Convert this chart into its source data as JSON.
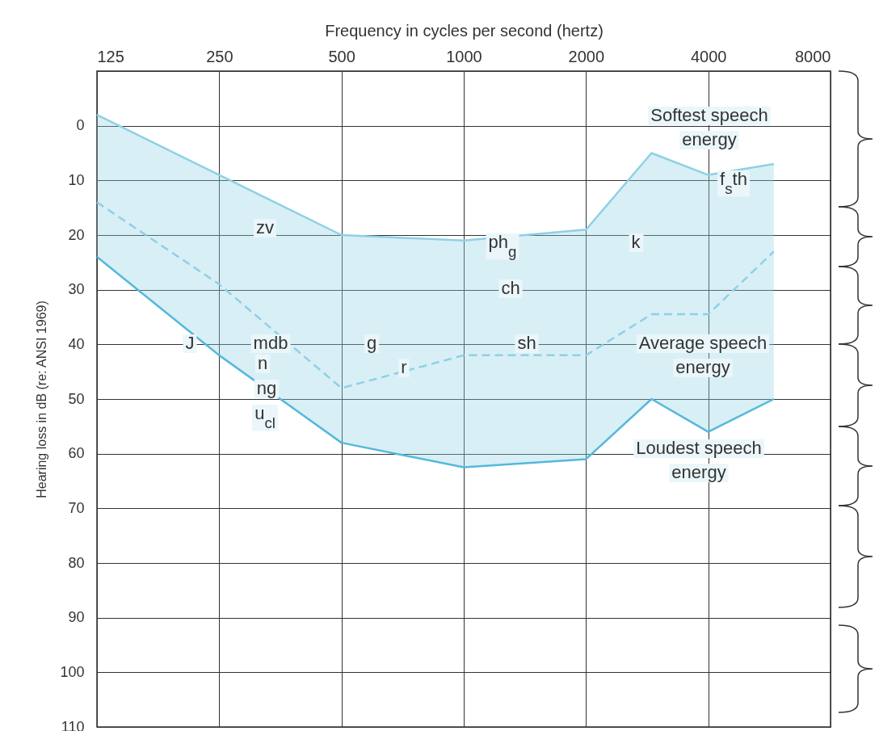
{
  "chart_data": {
    "type": "line",
    "xlabel": "Frequency in cycles per second (hertz)",
    "ylabel": "Hearing loss in dB (re: ANSI 1969)",
    "log": "x",
    "grid": true,
    "marker": "none",
    "xlim": [
      125,
      8000
    ],
    "xticks": [
      125,
      250,
      500,
      1000,
      2000,
      4000,
      8000
    ],
    "ylim": [
      110,
      -10
    ],
    "yticks": [
      0,
      10,
      20,
      30,
      40,
      50,
      60,
      70,
      80,
      90,
      100,
      110
    ],
    "series": [
      {
        "color": "#8fd0e6",
        "line_style": "solid",
        "x": [
          125,
          250,
          500,
          1000,
          2000,
          2900,
          4000,
          5800
        ],
        "values": [
          -2,
          9,
          20,
          21,
          19,
          5,
          9,
          7
        ]
      },
      {
        "color": "#8fd0e6",
        "line_style": "dashed",
        "x": [
          125,
          250,
          500,
          1000,
          2000,
          2900,
          4000,
          5800
        ],
        "values": [
          14,
          29,
          48,
          42,
          42,
          34.5,
          34.5,
          23
        ],
        "lower": [
          -2,
          9,
          20,
          21,
          19,
          5,
          9,
          7
        ],
        "upper": [
          24,
          42,
          58,
          62.5,
          61,
          50,
          56,
          50
        ]
      },
      {
        "color": "#55b8dc",
        "line_style": "solid",
        "x": [
          125,
          250,
          500,
          1000,
          2000,
          2900,
          4000,
          5800
        ],
        "values": [
          24,
          42,
          58,
          62.5,
          61,
          50,
          56,
          50
        ]
      }
    ],
    "annotations": [
      "Softest speech energy",
      "Average speech energy",
      "Loudest speech energy",
      "zv",
      "J",
      "mdb",
      "n",
      "ng",
      "u$_{cl}$",
      "g",
      "r",
      "ph$_{g}$",
      "ch",
      "sh",
      "k",
      "f$_{s}$th"
    ]
  }
}
